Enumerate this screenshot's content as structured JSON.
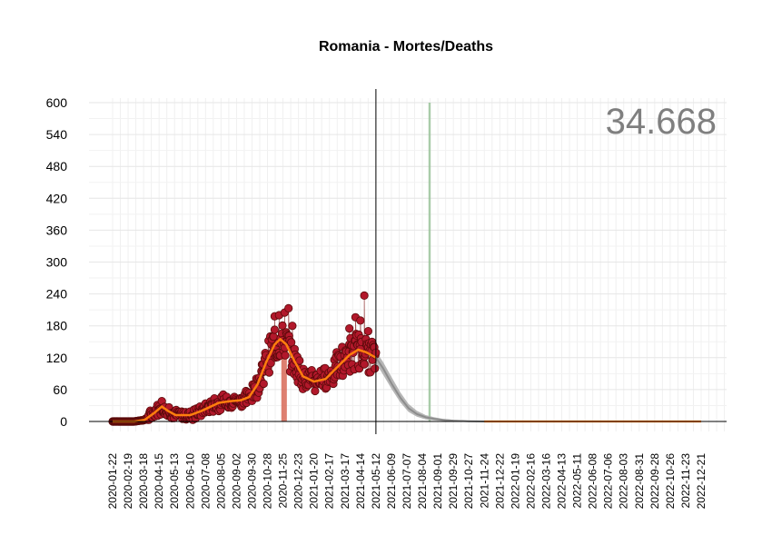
{
  "chart_data": {
    "type": "scatter",
    "title": "Romania - Mortes/Deaths",
    "total_label": "34.668",
    "ylim": [
      -20,
      605
    ],
    "yticks": [
      0,
      60,
      120,
      180,
      240,
      300,
      360,
      420,
      480,
      540,
      600
    ],
    "ytick_labels": [
      "0",
      "60",
      "120",
      "180",
      "240",
      "300",
      "360",
      "420",
      "480",
      "540",
      "600"
    ],
    "x_start": "2020-01-22",
    "x_end": "2022-12-31",
    "x_tick_labels": [
      "2020-01-22",
      "2020-02-19",
      "2020-03-18",
      "2020-04-15",
      "2020-05-13",
      "2020-06-10",
      "2020-07-08",
      "2020-08-05",
      "2020-09-02",
      "2020-09-30",
      "2020-10-28",
      "2020-11-25",
      "2020-12-23",
      "2021-01-20",
      "2021-02-17",
      "2021-03-17",
      "2021-04-14",
      "2021-05-12",
      "2021-06-09",
      "2021-07-07",
      "2021-08-04",
      "2021-09-01",
      "2021-09-29",
      "2021-10-27",
      "2021-11-24",
      "2021-12-22",
      "2022-01-19",
      "2022-02-16",
      "2022-03-16",
      "2022-04-13",
      "2022-05-11",
      "2022-06-08",
      "2022-07-06",
      "2022-08-03",
      "2022-08-31",
      "2022-09-28",
      "2022-10-26",
      "2022-11-23",
      "2022-12-21"
    ],
    "grid": true,
    "colors": {
      "points": "#b2182b",
      "point_edge": "#5a0a0a",
      "trend": "#ff7f0e",
      "projection": "#a9a9a9",
      "peak_bar": "#d6604d",
      "marker_bar": "#8fbc8f",
      "grid": "#e5e5e5"
    },
    "observed_trend": [
      {
        "x": "2020-01-22",
        "y": 0
      },
      {
        "x": "2020-03-01",
        "y": 0
      },
      {
        "x": "2020-03-20",
        "y": 3
      },
      {
        "x": "2020-04-05",
        "y": 15
      },
      {
        "x": "2020-04-20",
        "y": 28
      },
      {
        "x": "2020-05-01",
        "y": 20
      },
      {
        "x": "2020-05-15",
        "y": 12
      },
      {
        "x": "2020-06-10",
        "y": 12
      },
      {
        "x": "2020-07-01",
        "y": 20
      },
      {
        "x": "2020-08-01",
        "y": 35
      },
      {
        "x": "2020-08-20",
        "y": 38
      },
      {
        "x": "2020-09-10",
        "y": 40
      },
      {
        "x": "2020-09-25",
        "y": 46
      },
      {
        "x": "2020-10-10",
        "y": 70
      },
      {
        "x": "2020-10-25",
        "y": 110
      },
      {
        "x": "2020-11-10",
        "y": 145
      },
      {
        "x": "2020-11-20",
        "y": 155
      },
      {
        "x": "2020-12-01",
        "y": 145
      },
      {
        "x": "2020-12-15",
        "y": 115
      },
      {
        "x": "2020-12-31",
        "y": 85
      },
      {
        "x": "2021-01-20",
        "y": 75
      },
      {
        "x": "2021-02-10",
        "y": 80
      },
      {
        "x": "2021-03-01",
        "y": 100
      },
      {
        "x": "2021-03-25",
        "y": 125
      },
      {
        "x": "2021-04-10",
        "y": 135
      },
      {
        "x": "2021-04-25",
        "y": 130
      },
      {
        "x": "2021-05-12",
        "y": 120
      }
    ],
    "projection_trend": [
      {
        "x": "2021-05-12",
        "y": 120
      },
      {
        "x": "2021-05-25",
        "y": 100
      },
      {
        "x": "2021-06-10",
        "y": 70
      },
      {
        "x": "2021-06-25",
        "y": 45
      },
      {
        "x": "2021-07-10",
        "y": 25
      },
      {
        "x": "2021-07-25",
        "y": 14
      },
      {
        "x": "2021-08-10",
        "y": 8
      },
      {
        "x": "2021-08-25",
        "y": 5
      },
      {
        "x": "2021-09-10",
        "y": 3
      },
      {
        "x": "2021-09-29",
        "y": 1.5
      },
      {
        "x": "2021-10-27",
        "y": 0.5
      },
      {
        "x": "2021-11-24",
        "y": 0
      },
      {
        "x": "2022-12-21",
        "y": 0
      }
    ],
    "projection_band": [
      {
        "x": "2021-05-12",
        "lo": 110,
        "hi": 132
      },
      {
        "x": "2021-05-25",
        "lo": 88,
        "hi": 112
      },
      {
        "x": "2021-06-10",
        "lo": 60,
        "hi": 82
      },
      {
        "x": "2021-06-25",
        "lo": 36,
        "hi": 55
      },
      {
        "x": "2021-07-10",
        "lo": 18,
        "hi": 33
      },
      {
        "x": "2021-07-25",
        "lo": 9,
        "hi": 20
      },
      {
        "x": "2021-08-10",
        "lo": 4,
        "hi": 12
      },
      {
        "x": "2021-08-25",
        "lo": 2,
        "hi": 8
      },
      {
        "x": "2021-09-10",
        "lo": 1,
        "hi": 5
      },
      {
        "x": "2021-09-29",
        "lo": 0,
        "hi": 3
      },
      {
        "x": "2021-10-27",
        "lo": 0,
        "hi": 1
      },
      {
        "x": "2021-11-24",
        "lo": 0,
        "hi": 0
      }
    ],
    "peak_bar": {
      "x_start": "2020-11-22",
      "x_end": "2020-12-02",
      "y": 122
    },
    "marker_bar": {
      "x_start": "2021-08-15",
      "x_end": "2021-08-19",
      "y": 600
    },
    "today_line": {
      "x": "2021-05-12"
    },
    "scatter_points": [
      {
        "x": "2021-04-21",
        "y": 237
      },
      {
        "x": "2020-12-05",
        "y": 213
      },
      {
        "x": "2020-11-28",
        "y": 205
      },
      {
        "x": "2020-11-18",
        "y": 200
      },
      {
        "x": "2020-11-10",
        "y": 198
      },
      {
        "x": "2021-04-05",
        "y": 196
      },
      {
        "x": "2021-04-14",
        "y": 190
      },
      {
        "x": "2020-12-12",
        "y": 180
      },
      {
        "x": "2021-03-25",
        "y": 175
      },
      {
        "x": "2021-04-28",
        "y": 170
      }
    ]
  }
}
